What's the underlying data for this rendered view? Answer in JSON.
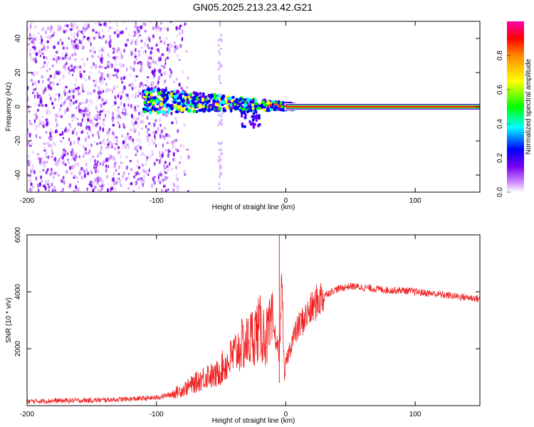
{
  "title": "GN05.2025.213.23.42.G21",
  "colors": {
    "snr_line": "#ee2222",
    "colormap": [
      "#ffffff",
      "#cc88ff",
      "#7700ee",
      "#0000ff",
      "#00ffff",
      "#00ff00",
      "#ffff00",
      "#ff8800",
      "#ff0000",
      "#ff00aa"
    ]
  },
  "chart_data": [
    {
      "type": "heatmap",
      "id": "spectrogram",
      "xlabel": "Height of straight line (km)",
      "ylabel": "Frequency (Hz)",
      "xlim": [
        -200,
        150
      ],
      "ylim": [
        -50,
        50
      ],
      "xticks": [
        -200,
        -100,
        0,
        100
      ],
      "yticks": [
        -40,
        -20,
        0,
        20,
        40
      ],
      "colorbar": {
        "label": "Normalized spectral amplitude",
        "range": [
          0,
          1
        ],
        "ticks": [
          "0.0",
          "0.2",
          "0.4",
          "0.6",
          "0.8"
        ]
      },
      "description_points": {
        "noise_region_x": [
          -200,
          -85
        ],
        "signal_band_start_x": -110,
        "signal_centerline_freq_hz": 0,
        "strong_tone_start_x": 0,
        "strong_tone_end_x": 150
      }
    },
    {
      "type": "line",
      "id": "snr",
      "xlabel": "Height of straight line (km)",
      "ylabel": "SNR (10 * v/v)",
      "xlim": [
        -200,
        150
      ],
      "ylim": [
        0,
        6000
      ],
      "xticks": [
        -200,
        -100,
        0,
        100
      ],
      "yticks": [
        2000,
        4000,
        6000
      ],
      "series": [
        {
          "x": [
            -200,
            -180,
            -160,
            -140,
            -120,
            -100,
            -90,
            -80,
            -70,
            -60,
            -55,
            -50,
            -45,
            -40,
            -35,
            -30,
            -25,
            -20,
            -15,
            -10,
            -5,
            -3,
            -1,
            0,
            5,
            10,
            15,
            20,
            25,
            30,
            40,
            50,
            60,
            70,
            80,
            90,
            100,
            110,
            120,
            130,
            140,
            150
          ],
          "y": [
            150,
            170,
            180,
            200,
            230,
            280,
            380,
            550,
            800,
            1100,
            1000,
            1300,
            1500,
            1800,
            2100,
            2200,
            2500,
            2700,
            2400,
            2800,
            1800,
            4500,
            800,
            1500,
            2300,
            2800,
            3100,
            3400,
            3700,
            3900,
            4100,
            4200,
            4150,
            4100,
            4050,
            4050,
            4000,
            3950,
            3900,
            3850,
            3800,
            3750
          ]
        }
      ]
    }
  ]
}
